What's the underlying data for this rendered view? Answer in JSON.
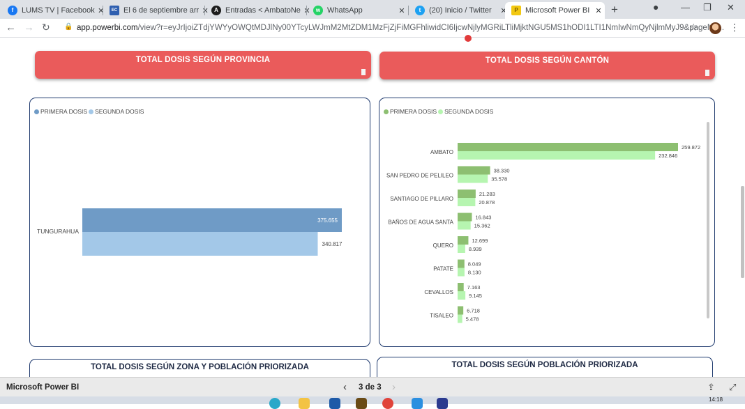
{
  "browser": {
    "tabs": [
      {
        "title": "LUMS TV | Facebook",
        "favicon_color": "#1877f2",
        "favicon_glyph": "f"
      },
      {
        "title": "El 6 de septiembre arr",
        "favicon_color": "#2f5fb0",
        "favicon_glyph": "EC"
      },
      {
        "title": "Entradas < AmbatoNe",
        "favicon_color": "#1d1d1d",
        "favicon_glyph": "A"
      },
      {
        "title": "WhatsApp",
        "favicon_color": "#25d366",
        "favicon_glyph": "w"
      },
      {
        "title": "(20) Inicio / Twitter",
        "favicon_color": "#1da1f2",
        "favicon_glyph": "t"
      },
      {
        "title": "Microsoft Power BI",
        "favicon_color": "#f2c811",
        "favicon_glyph": "P"
      }
    ],
    "new_tab": "+",
    "url_host": "app.powerbi.com",
    "url_rest": "/view?r=eyJrIjoiZTdjYWYyOWQtMDJlNy00YTcyLWJmM2MtZDM1MzFjZjFiMGFhliwidCI6IjcwNjlyMGRiLTliMjktNGU5MS1hODI1LTI1NmIwNmQyNjlmMyJ9&pageNa..."
  },
  "report": {
    "header_left": "TOTAL DOSIS SEGÚN PROVINCIA",
    "header_right": "TOTAL DOSIS SEGÚN CANTÓN",
    "bottom_left": "TOTAL DOSIS SEGÚN ZONA Y POBLACIÓN PRIORIZADA",
    "bottom_right": "TOTAL DOSIS SEGÚN POBLACIÓN PRIORIZADA",
    "legend_first": "PRIMERA DOSIS",
    "legend_second": "SEGUNDA DOSIS",
    "colors": {
      "header_red": "#ea5b5b",
      "prov_first": "#6f9bc6",
      "prov_second": "#a3c8e8",
      "canton_first": "#8dbf71",
      "canton_second": "#b6f5b0"
    }
  },
  "chart_data": [
    {
      "type": "bar",
      "orientation": "horizontal",
      "categories": [
        "TUNGURAHUA"
      ],
      "series": [
        {
          "name": "PRIMERA DOSIS",
          "values": [
            375655
          ],
          "labels": [
            "375.655"
          ]
        },
        {
          "name": "SEGUNDA DOSIS",
          "values": [
            340817
          ],
          "labels": [
            "340.817"
          ]
        }
      ],
      "legend": "top-left"
    },
    {
      "type": "bar",
      "orientation": "horizontal",
      "categories": [
        "AMBATO",
        "SAN PEDRO DE PELILEO",
        "SANTIAGO DE PILLARO",
        "BAÑOS DE AGUA SANTA",
        "QUERO",
        "PATATE",
        "CEVALLOS",
        "TISALEO"
      ],
      "series": [
        {
          "name": "PRIMERA DOSIS",
          "values": [
            259872,
            38330,
            21283,
            16843,
            12699,
            8049,
            7163,
            6718
          ],
          "labels": [
            "259.872",
            "38.330",
            "21.283",
            "16.843",
            "12.699",
            "8.049",
            "7.163",
            "6.718"
          ]
        },
        {
          "name": "SEGUNDA DOSIS",
          "values": [
            232846,
            35578,
            20878,
            15362,
            8939,
            8130,
            9145,
            5478
          ],
          "labels": [
            "232.846",
            "35.578",
            "20.878",
            "15.362",
            "8.939",
            "8.130",
            "9.145",
            "5.478"
          ]
        }
      ],
      "legend": "top-left"
    }
  ],
  "footer": {
    "app_name": "Microsoft Power BI",
    "page_indicator": "3 de 3"
  },
  "taskbar": {
    "clock": "14:18"
  }
}
